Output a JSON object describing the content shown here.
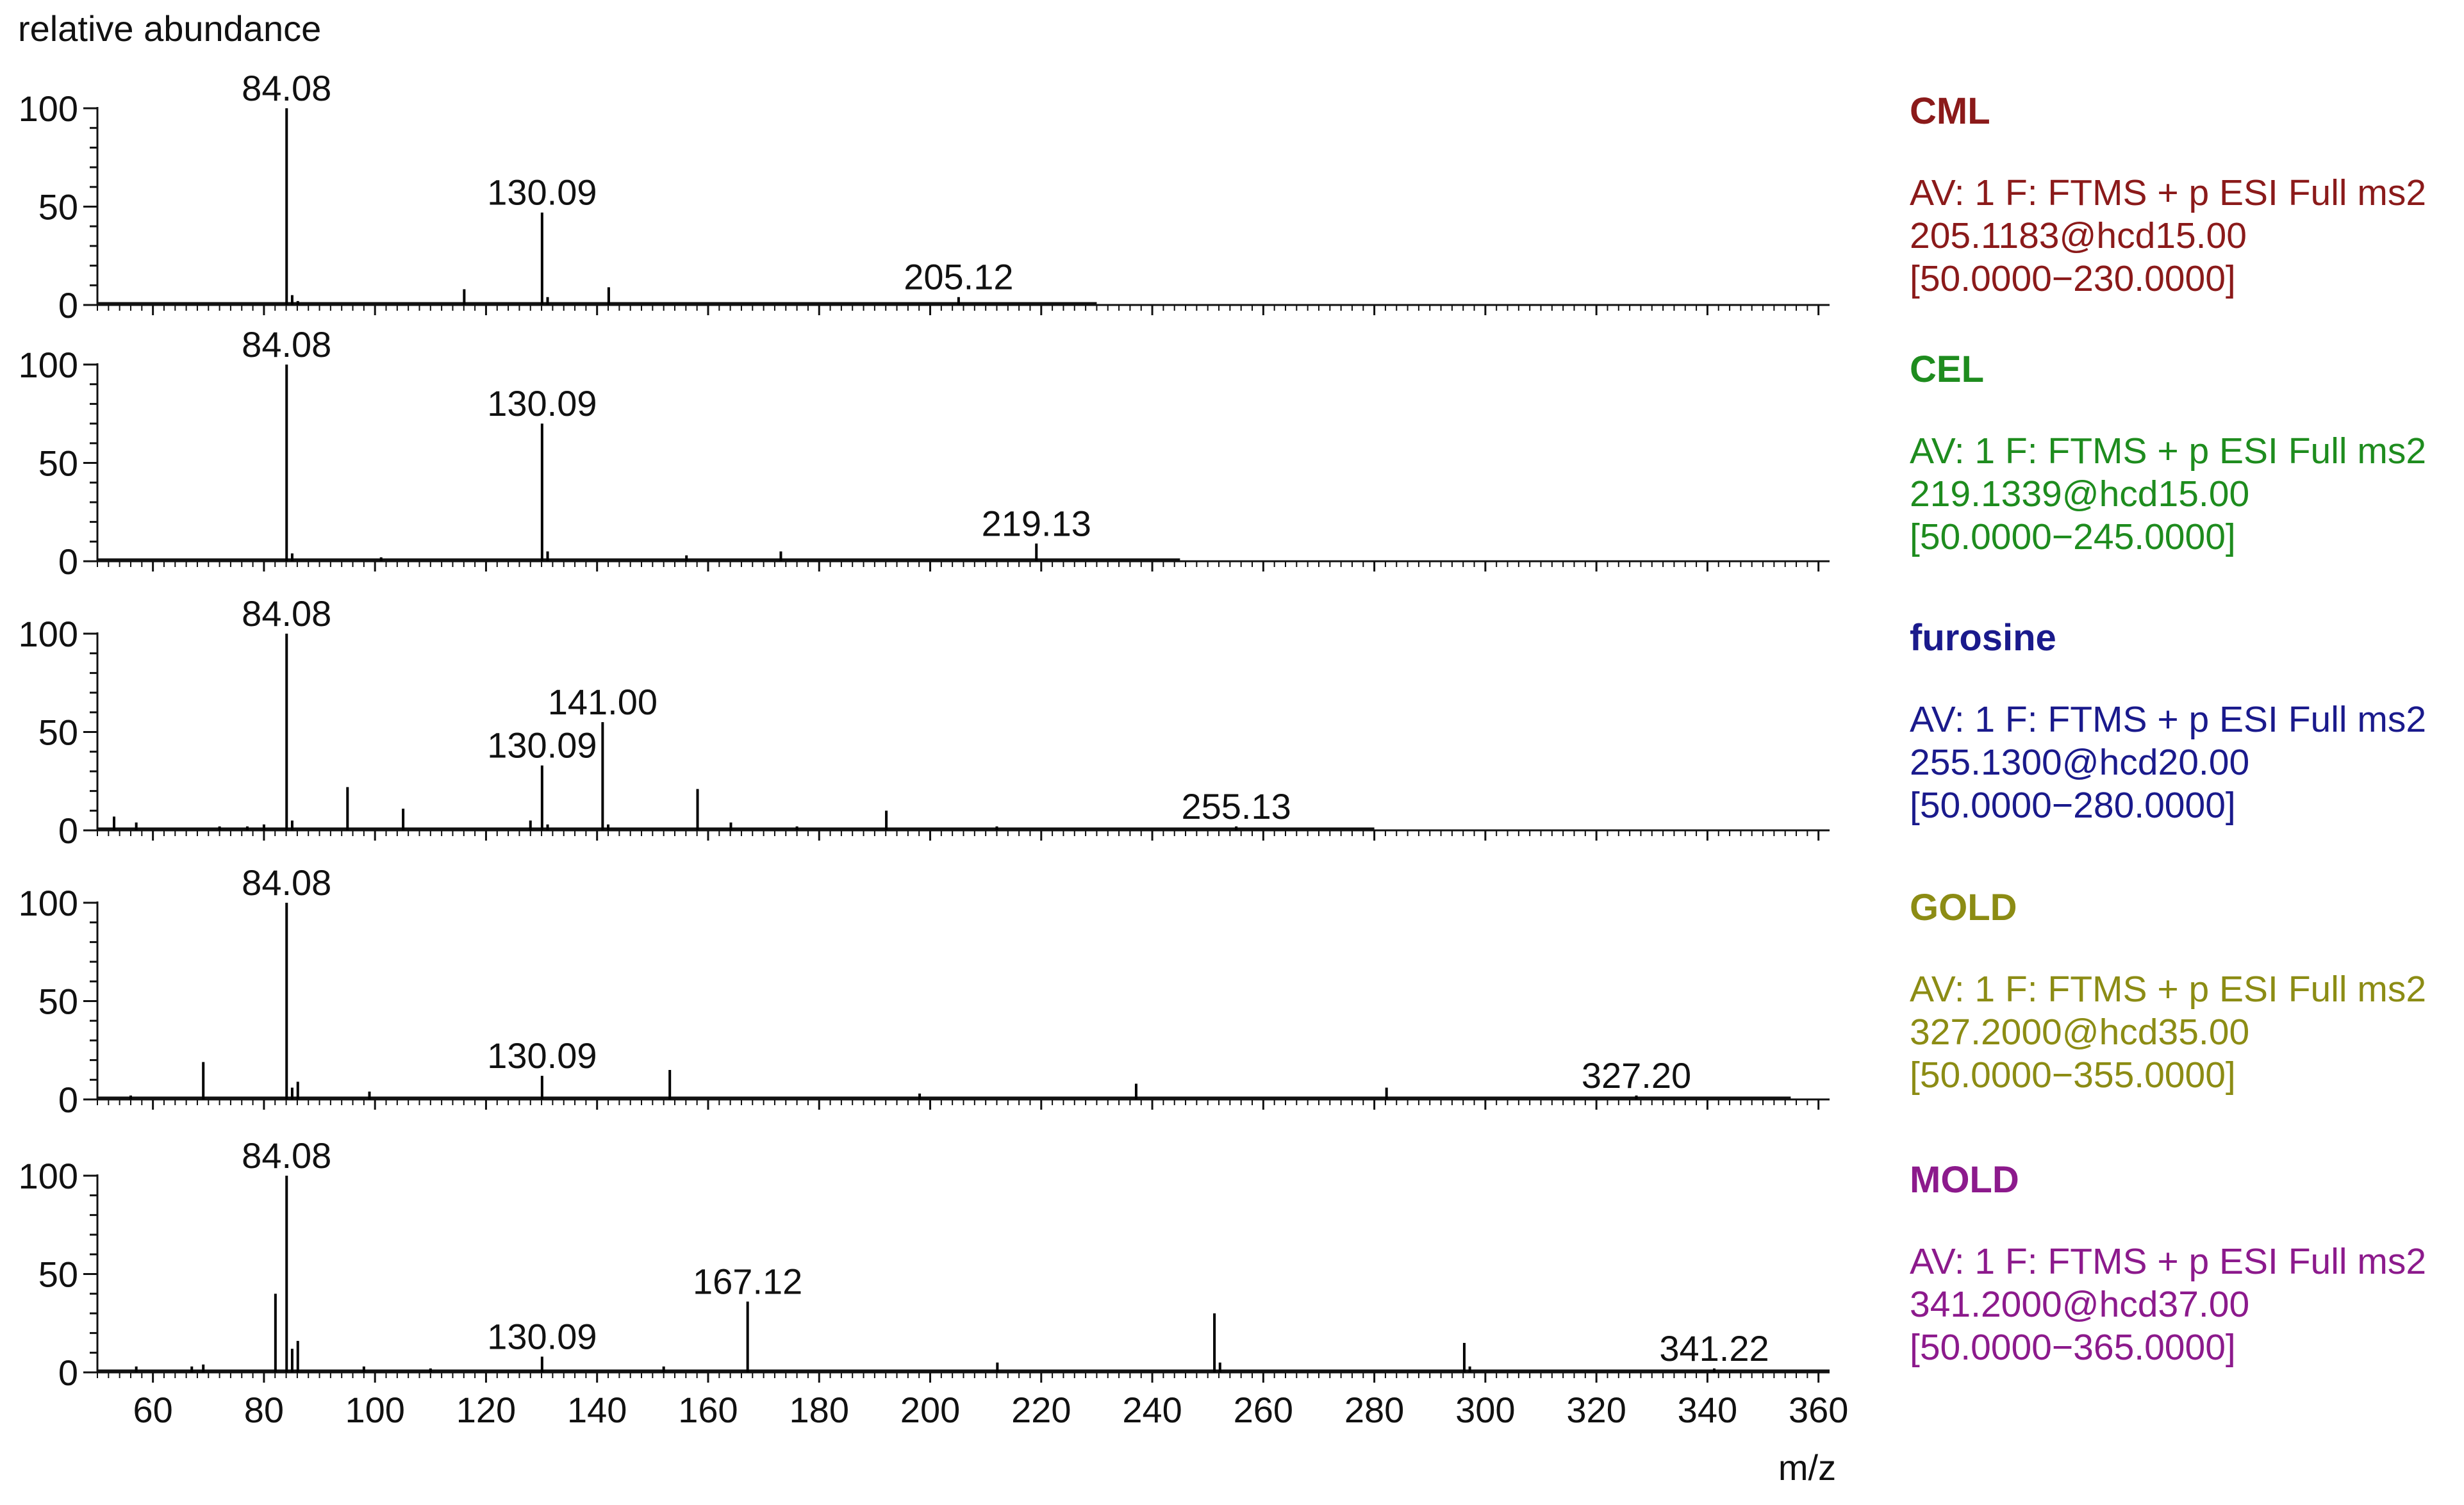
{
  "chart_data": {
    "type": "bar",
    "subtype": "stacked mass spectra (stick plot)",
    "ylabel": "relative abundance",
    "xlabel": "m/z",
    "xlim": [
      50,
      362
    ],
    "ylim": [
      0,
      100
    ],
    "x_ticks": [
      60,
      80,
      100,
      120,
      140,
      160,
      180,
      200,
      220,
      240,
      260,
      280,
      300,
      320,
      340,
      360
    ],
    "y_ticks": [
      0,
      50,
      100
    ],
    "panels": [
      {
        "name": "CML",
        "color": "#8b1a1a",
        "scan_filter": "AV: 1 F: FTMS + p ESI Full ms2",
        "precursor": "205.1183@hcd15.00",
        "range_text": "[50.0000−230.0000]",
        "trace_end": 230,
        "peaks": [
          {
            "mz": 84.08,
            "y": 100,
            "label": "84.08"
          },
          {
            "mz": 85.08,
            "y": 5
          },
          {
            "mz": 86.1,
            "y": 2
          },
          {
            "mz": 116.07,
            "y": 8
          },
          {
            "mz": 130.09,
            "y": 47,
            "label": "130.09"
          },
          {
            "mz": 131.09,
            "y": 4
          },
          {
            "mz": 142.1,
            "y": 9
          },
          {
            "mz": 205.12,
            "y": 4,
            "label": "205.12"
          }
        ]
      },
      {
        "name": "CEL",
        "color": "#1e8c1e",
        "scan_filter": "AV: 1 F: FTMS + p ESI Full ms2",
        "precursor": "219.1339@hcd15.00",
        "range_text": "[50.0000−245.0000]",
        "trace_end": 245,
        "peaks": [
          {
            "mz": 84.08,
            "y": 100,
            "label": "84.08"
          },
          {
            "mz": 85.08,
            "y": 4
          },
          {
            "mz": 101.1,
            "y": 2
          },
          {
            "mz": 130.09,
            "y": 70,
            "label": "130.09"
          },
          {
            "mz": 131.09,
            "y": 5
          },
          {
            "mz": 156.1,
            "y": 3
          },
          {
            "mz": 173.1,
            "y": 5
          },
          {
            "mz": 219.13,
            "y": 9,
            "label": "219.13"
          }
        ]
      },
      {
        "name": "furosine",
        "color": "#1a1a8c",
        "scan_filter": "AV: 1 F: FTMS + p ESI Full ms2",
        "precursor": "255.1300@hcd20.00",
        "range_text": "[50.0000−280.0000]",
        "trace_end": 280,
        "peaks": [
          {
            "mz": 53.0,
            "y": 7
          },
          {
            "mz": 57.0,
            "y": 4
          },
          {
            "mz": 72.0,
            "y": 2
          },
          {
            "mz": 77.0,
            "y": 2
          },
          {
            "mz": 80.0,
            "y": 3
          },
          {
            "mz": 84.08,
            "y": 100,
            "label": "84.08"
          },
          {
            "mz": 85.08,
            "y": 5
          },
          {
            "mz": 95.05,
            "y": 22
          },
          {
            "mz": 105.07,
            "y": 11
          },
          {
            "mz": 128.0,
            "y": 5
          },
          {
            "mz": 130.09,
            "y": 33,
            "label": "130.09"
          },
          {
            "mz": 131.09,
            "y": 3
          },
          {
            "mz": 141.0,
            "y": 55,
            "label": "141.00"
          },
          {
            "mz": 142.0,
            "y": 3
          },
          {
            "mz": 158.1,
            "y": 21
          },
          {
            "mz": 164.1,
            "y": 4
          },
          {
            "mz": 176.0,
            "y": 2
          },
          {
            "mz": 192.1,
            "y": 10
          },
          {
            "mz": 212.0,
            "y": 2
          },
          {
            "mz": 255.13,
            "y": 2,
            "label": "255.13"
          }
        ]
      },
      {
        "name": "GOLD",
        "color": "#8c8c14",
        "scan_filter": "AV: 1 F: FTMS + p ESI Full ms2",
        "precursor": "327.2000@hcd35.00",
        "range_text": "[50.0000−355.0000]",
        "trace_end": 355,
        "peaks": [
          {
            "mz": 56.0,
            "y": 2
          },
          {
            "mz": 69.07,
            "y": 19
          },
          {
            "mz": 84.08,
            "y": 100,
            "label": "84.08"
          },
          {
            "mz": 85.08,
            "y": 6
          },
          {
            "mz": 86.1,
            "y": 9
          },
          {
            "mz": 99.0,
            "y": 4
          },
          {
            "mz": 130.09,
            "y": 12,
            "label": "130.09"
          },
          {
            "mz": 153.1,
            "y": 15
          },
          {
            "mz": 198.1,
            "y": 3
          },
          {
            "mz": 237.1,
            "y": 8
          },
          {
            "mz": 282.2,
            "y": 6
          },
          {
            "mz": 327.2,
            "y": 2,
            "label": "327.20"
          }
        ]
      },
      {
        "name": "MOLD",
        "color": "#8c1a8c",
        "scan_filter": "AV: 1 F: FTMS + p ESI Full ms2",
        "precursor": "341.2000@hcd37.00",
        "range_text": "[50.0000−365.0000]",
        "trace_end": 362,
        "peaks": [
          {
            "mz": 57.0,
            "y": 3
          },
          {
            "mz": 67.0,
            "y": 3
          },
          {
            "mz": 69.07,
            "y": 4
          },
          {
            "mz": 82.07,
            "y": 40
          },
          {
            "mz": 84.08,
            "y": 100,
            "label": "84.08"
          },
          {
            "mz": 85.08,
            "y": 12
          },
          {
            "mz": 86.1,
            "y": 16
          },
          {
            "mz": 98.0,
            "y": 3
          },
          {
            "mz": 110.0,
            "y": 2
          },
          {
            "mz": 130.09,
            "y": 8,
            "label": "130.09"
          },
          {
            "mz": 152.0,
            "y": 3
          },
          {
            "mz": 167.12,
            "y": 36,
            "label": "167.12"
          },
          {
            "mz": 212.1,
            "y": 5
          },
          {
            "mz": 251.2,
            "y": 30
          },
          {
            "mz": 252.2,
            "y": 5
          },
          {
            "mz": 296.2,
            "y": 15
          },
          {
            "mz": 297.2,
            "y": 3
          },
          {
            "mz": 341.22,
            "y": 2,
            "label": "341.22"
          }
        ]
      }
    ]
  }
}
